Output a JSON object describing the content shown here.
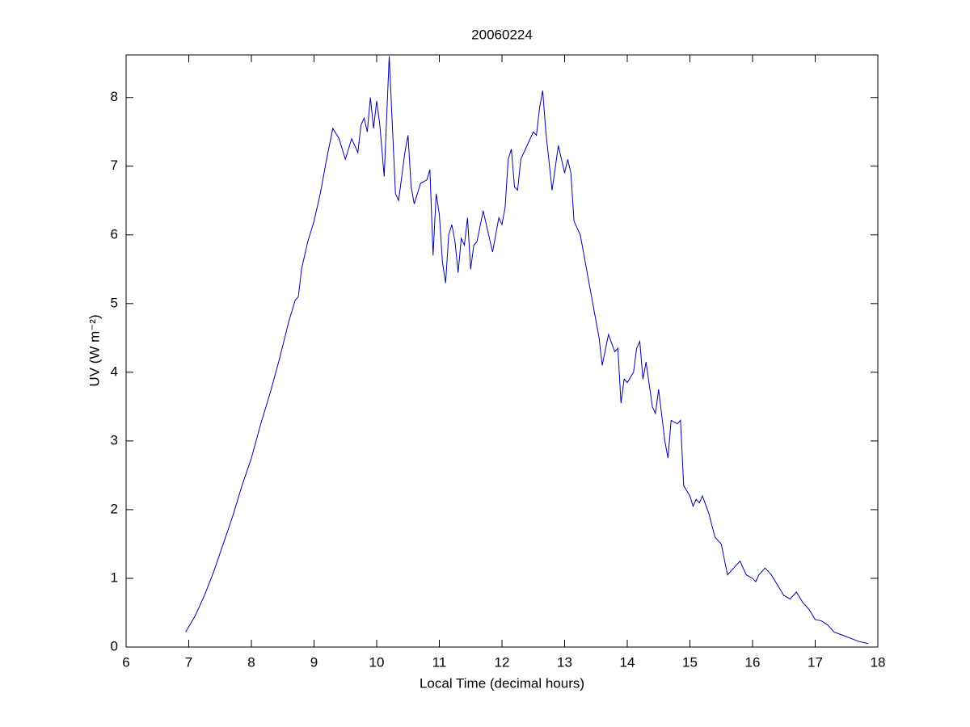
{
  "chart_data": {
    "type": "line",
    "title": "20060224",
    "x_label": "Local Time (decimal hours)",
    "y_label": "UV (W m⁻²)",
    "x": [
      6.95,
      7.1,
      7.25,
      7.4,
      7.55,
      7.7,
      7.85,
      8.0,
      8.15,
      8.3,
      8.45,
      8.6,
      8.7,
      8.75,
      8.8,
      8.9,
      9.0,
      9.1,
      9.2,
      9.3,
      9.4,
      9.5,
      9.6,
      9.7,
      9.75,
      9.8,
      9.85,
      9.9,
      9.95,
      10.0,
      10.05,
      10.12,
      10.2,
      10.25,
      10.3,
      10.35,
      10.45,
      10.5,
      10.55,
      10.6,
      10.7,
      10.8,
      10.85,
      10.9,
      10.95,
      11.0,
      11.05,
      11.1,
      11.15,
      11.2,
      11.25,
      11.3,
      11.35,
      11.4,
      11.45,
      11.5,
      11.55,
      11.6,
      11.7,
      11.75,
      11.85,
      11.95,
      12.0,
      12.05,
      12.1,
      12.15,
      12.2,
      12.25,
      12.3,
      12.4,
      12.5,
      12.55,
      12.6,
      12.65,
      12.7,
      12.8,
      12.9,
      12.95,
      13.0,
      13.05,
      13.1,
      13.15,
      13.25,
      13.35,
      13.45,
      13.55,
      13.6,
      13.7,
      13.8,
      13.85,
      13.9,
      13.95,
      14.0,
      14.1,
      14.15,
      14.2,
      14.25,
      14.3,
      14.4,
      14.45,
      14.5,
      14.6,
      14.65,
      14.7,
      14.8,
      14.85,
      14.9,
      15.0,
      15.05,
      15.1,
      15.15,
      15.2,
      15.3,
      15.4,
      15.5,
      15.6,
      15.7,
      15.8,
      15.9,
      16.0,
      16.05,
      16.1,
      16.2,
      16.3,
      16.4,
      16.5,
      16.6,
      16.7,
      16.8,
      16.9,
      17.0,
      17.1,
      17.2,
      17.3,
      17.5,
      17.7,
      17.85
    ],
    "series": [
      {
        "color": "#0000b0",
        "values": [
          0.22,
          0.45,
          0.75,
          1.1,
          1.5,
          1.9,
          2.35,
          2.75,
          3.25,
          3.7,
          4.2,
          4.75,
          5.05,
          5.1,
          5.5,
          5.9,
          6.2,
          6.6,
          7.1,
          7.55,
          7.4,
          7.1,
          7.4,
          7.2,
          7.6,
          7.7,
          7.5,
          8.0,
          7.55,
          7.95,
          7.6,
          6.85,
          8.6,
          7.6,
          6.6,
          6.5,
          7.2,
          7.45,
          6.7,
          6.45,
          6.75,
          6.8,
          6.95,
          5.7,
          6.6,
          6.3,
          5.6,
          5.3,
          6.0,
          6.15,
          5.9,
          5.45,
          5.95,
          5.85,
          6.25,
          5.5,
          5.85,
          5.9,
          6.35,
          6.15,
          5.75,
          6.25,
          6.15,
          6.4,
          7.1,
          7.25,
          6.7,
          6.65,
          7.1,
          7.3,
          7.5,
          7.45,
          7.85,
          8.1,
          7.5,
          6.65,
          7.3,
          7.1,
          6.9,
          7.1,
          6.9,
          6.2,
          6.0,
          5.5,
          5.0,
          4.5,
          4.1,
          4.55,
          4.3,
          4.35,
          3.55,
          3.9,
          3.85,
          4.0,
          4.35,
          4.45,
          3.9,
          4.15,
          3.5,
          3.4,
          3.75,
          3.0,
          2.75,
          3.3,
          3.25,
          3.3,
          2.35,
          2.2,
          2.05,
          2.15,
          2.1,
          2.2,
          1.95,
          1.6,
          1.5,
          1.05,
          1.15,
          1.25,
          1.05,
          1.0,
          0.95,
          1.05,
          1.15,
          1.05,
          0.9,
          0.75,
          0.7,
          0.8,
          0.65,
          0.55,
          0.4,
          0.38,
          0.32,
          0.22,
          0.15,
          0.08,
          0.05
        ]
      }
    ],
    "xlim": [
      6,
      18
    ],
    "xticks": [
      6,
      7,
      8,
      9,
      10,
      11,
      12,
      13,
      14,
      15,
      16,
      17,
      18
    ],
    "ylim": [
      0,
      8.62
    ],
    "yticks": [
      0,
      1,
      2,
      3,
      4,
      5,
      6,
      7,
      8
    ]
  }
}
